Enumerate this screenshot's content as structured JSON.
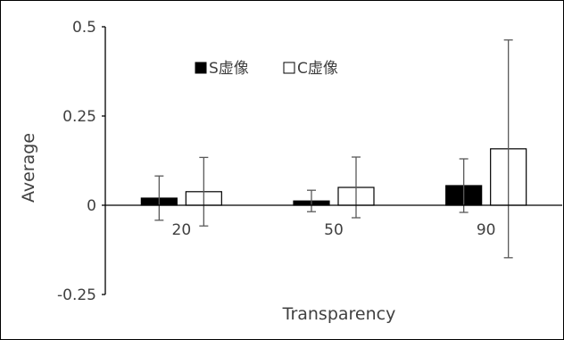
{
  "chart_data": {
    "type": "bar",
    "categories": [
      "20",
      "50",
      "90"
    ],
    "series": [
      {
        "name": "S虚像",
        "values": [
          0.02,
          0.012,
          0.055
        ],
        "err": [
          0.062,
          0.03,
          0.075
        ],
        "fill": "#000000"
      },
      {
        "name": "C虚像",
        "values": [
          0.038,
          0.05,
          0.158
        ],
        "err": [
          0.096,
          0.085,
          0.305
        ],
        "fill": "#ffffff"
      }
    ],
    "xlabel": "Transparency",
    "ylabel": "Average",
    "ylim": [
      -0.25,
      0.5
    ],
    "yticks": [
      {
        "value": 0.5,
        "label": "0.5"
      },
      {
        "value": 0.25,
        "label": "0.25"
      },
      {
        "value": 0,
        "label": "0"
      },
      {
        "value": -0.25,
        "label": "-0.25"
      }
    ],
    "legend_position": "top-left",
    "grid": false
  }
}
